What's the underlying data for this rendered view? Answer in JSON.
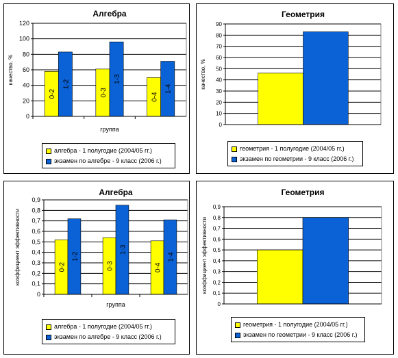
{
  "colors": {
    "series1": "#ffff00",
    "series2": "#0b62d6",
    "axis": "#000000",
    "grid": "#000000"
  },
  "chart_data": [
    {
      "type": "bar",
      "title": "Алгебра",
      "xlabel": "группа",
      "ylabel": "качество, %",
      "ylim": [
        0,
        120
      ],
      "yticks": [
        "0",
        "20",
        "40",
        "60",
        "80",
        "100",
        "120"
      ],
      "categories": [
        "",
        "",
        ""
      ],
      "series": [
        {
          "name": "алгебра - 1 полугодие (2004/05 гг.)",
          "values": [
            58,
            61,
            50
          ],
          "labels": [
            "0-2",
            "0-3",
            "0-4"
          ]
        },
        {
          "name": "экзамен по алгебре - 9 класс (2006 г.)",
          "values": [
            83,
            96,
            71
          ],
          "labels": [
            "1-2",
            "1-3",
            "1-4"
          ]
        }
      ],
      "grid": true,
      "legend": "bottom"
    },
    {
      "type": "bar",
      "title": "Геометрия",
      "xlabel": "",
      "ylabel": "качество, %",
      "ylim": [
        0,
        90
      ],
      "yticks": [
        "0",
        "10",
        "20",
        "30",
        "40",
        "50",
        "60",
        "70",
        "80",
        "90"
      ],
      "categories": [
        ""
      ],
      "series": [
        {
          "name": "геометрия - 1 полугодие (2004/05 гг.)",
          "values": [
            46
          ],
          "labels": [
            ""
          ]
        },
        {
          "name": "экзамен по геометрии - 9 класс (2006 г.)",
          "values": [
            83
          ],
          "labels": [
            ""
          ]
        }
      ],
      "grid": true,
      "legend": "bottom"
    },
    {
      "type": "bar",
      "title": "Алгебра",
      "xlabel": "группа",
      "ylabel": "коэффициент эффективности",
      "ylim": [
        0,
        0.9
      ],
      "yticks": [
        "0",
        "0,1",
        "0,2",
        "0,3",
        "0,4",
        "0,5",
        "0,6",
        "0,7",
        "0,8",
        "0,9"
      ],
      "categories": [
        "",
        "",
        ""
      ],
      "series": [
        {
          "name": "алгебра - 1 полугодие (2004/05 гг.)",
          "values": [
            0.52,
            0.54,
            0.51
          ],
          "labels": [
            "0-2",
            "0-3",
            "0-4"
          ]
        },
        {
          "name": "экзамен по алгебре - 9 класс (2006 г.)",
          "values": [
            0.72,
            0.85,
            0.71
          ],
          "labels": [
            "1-2",
            "1-3",
            "1-4"
          ]
        }
      ],
      "grid": true,
      "legend": "bottom"
    },
    {
      "type": "bar",
      "title": "Геометрия",
      "xlabel": "",
      "ylabel": "коэффициент эффективности",
      "ylim": [
        0,
        0.9
      ],
      "yticks": [
        "0",
        "0,1",
        "0,2",
        "0,3",
        "0,4",
        "0,5",
        "0,6",
        "0,7",
        "0,8",
        "0,9"
      ],
      "categories": [
        ""
      ],
      "series": [
        {
          "name": "геометрия - 1 полугодие (2004/05 гг.)",
          "values": [
            0.5
          ],
          "labels": [
            ""
          ]
        },
        {
          "name": "экзамен по геометрии - 9 класс (2006 г.)",
          "values": [
            0.8
          ],
          "labels": [
            ""
          ]
        }
      ],
      "grid": true,
      "legend": "bottom"
    }
  ]
}
